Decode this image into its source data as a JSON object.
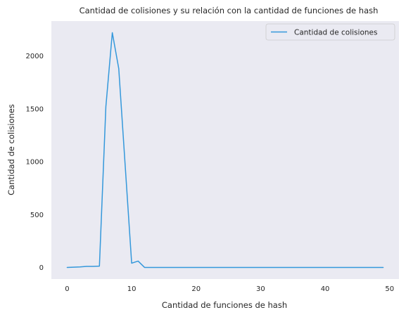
{
  "chart_data": {
    "type": "line",
    "title": "Cantidad de colisiones y su relación con la cantidad de funciones de hash",
    "xlabel": "Cantidad de funciones de hash",
    "ylabel": "Cantidad de colisiones",
    "xlim": [
      -2.45,
      51.45
    ],
    "ylim": [
      -110,
      2330
    ],
    "xticks": [
      0,
      10,
      20,
      30,
      40,
      50
    ],
    "yticks": [
      0,
      500,
      1000,
      1500,
      2000
    ],
    "grid": false,
    "legend_position": "upper-right",
    "background_color": "#eaeaf2",
    "series": [
      {
        "name": "Cantidad de colisiones",
        "color": "#3498db",
        "x": [
          0,
          1,
          2,
          3,
          4,
          5,
          6,
          7,
          8,
          9,
          10,
          11,
          12,
          13,
          14,
          15,
          16,
          17,
          18,
          19,
          20,
          21,
          22,
          23,
          24,
          25,
          26,
          27,
          28,
          29,
          30,
          31,
          32,
          33,
          34,
          35,
          36,
          37,
          38,
          39,
          40,
          41,
          42,
          43,
          44,
          45,
          46,
          47,
          48,
          49
        ],
        "values": [
          0,
          2,
          5,
          10,
          10,
          12,
          1520,
          2220,
          1880,
          960,
          40,
          60,
          0,
          0,
          0,
          0,
          0,
          0,
          0,
          0,
          0,
          0,
          0,
          0,
          0,
          0,
          0,
          0,
          0,
          0,
          0,
          0,
          0,
          0,
          0,
          0,
          0,
          0,
          0,
          0,
          0,
          0,
          0,
          0,
          0,
          0,
          0,
          0,
          0,
          0
        ]
      }
    ]
  }
}
